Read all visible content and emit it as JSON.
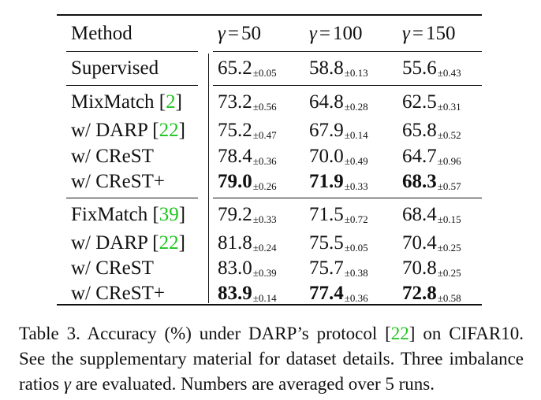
{
  "table": {
    "header": {
      "method": "Method",
      "cols": [
        {
          "symbol": "γ",
          "eq": "=",
          "value": "50"
        },
        {
          "symbol": "γ",
          "eq": "=",
          "value": "100"
        },
        {
          "symbol": "γ",
          "eq": "=",
          "value": "150"
        }
      ]
    },
    "rows": [
      {
        "method": "Supervised",
        "ref": "",
        "values": [
          {
            "mean": "65.2",
            "sd": "±0.05",
            "bold": false
          },
          {
            "mean": "58.8",
            "sd": "±0.13",
            "bold": false
          },
          {
            "mean": "55.6",
            "sd": "±0.43",
            "bold": false
          }
        ]
      },
      {
        "method": "MixMatch ",
        "ref": "2",
        "values": [
          {
            "mean": "73.2",
            "sd": "±0.56",
            "bold": false
          },
          {
            "mean": "64.8",
            "sd": "±0.28",
            "bold": false
          },
          {
            "mean": "62.5",
            "sd": "±0.31",
            "bold": false
          }
        ]
      },
      {
        "method": "w/ DARP ",
        "ref": "22",
        "values": [
          {
            "mean": "75.2",
            "sd": "±0.47",
            "bold": false
          },
          {
            "mean": "67.9",
            "sd": "±0.14",
            "bold": false
          },
          {
            "mean": "65.8",
            "sd": "±0.52",
            "bold": false
          }
        ]
      },
      {
        "method": "w/ CReST",
        "ref": "",
        "values": [
          {
            "mean": "78.4",
            "sd": "±0.36",
            "bold": false
          },
          {
            "mean": "70.0",
            "sd": "±0.49",
            "bold": false
          },
          {
            "mean": "64.7",
            "sd": "±0.96",
            "bold": false
          }
        ]
      },
      {
        "method": "w/ CReST+",
        "ref": "",
        "values": [
          {
            "mean": "79.0",
            "sd": "±0.26",
            "bold": true
          },
          {
            "mean": "71.9",
            "sd": "±0.33",
            "bold": true
          },
          {
            "mean": "68.3",
            "sd": "±0.57",
            "bold": true
          }
        ]
      },
      {
        "method": "FixMatch ",
        "ref": "39",
        "values": [
          {
            "mean": "79.2",
            "sd": "±0.33",
            "bold": false
          },
          {
            "mean": "71.5",
            "sd": "±0.72",
            "bold": false
          },
          {
            "mean": "68.4",
            "sd": "±0.15",
            "bold": false
          }
        ]
      },
      {
        "method": "w/ DARP ",
        "ref": "22",
        "values": [
          {
            "mean": "81.8",
            "sd": "±0.24",
            "bold": false
          },
          {
            "mean": "75.5",
            "sd": "±0.05",
            "bold": false
          },
          {
            "mean": "70.4",
            "sd": "±0.25",
            "bold": false
          }
        ]
      },
      {
        "method": "w/ CReST",
        "ref": "",
        "values": [
          {
            "mean": "83.0",
            "sd": "±0.39",
            "bold": false
          },
          {
            "mean": "75.7",
            "sd": "±0.38",
            "bold": false
          },
          {
            "mean": "70.8",
            "sd": "±0.25",
            "bold": false
          }
        ]
      },
      {
        "method": "w/ CReST+",
        "ref": "",
        "values": [
          {
            "mean": "83.9",
            "sd": "±0.14",
            "bold": true
          },
          {
            "mean": "77.4",
            "sd": "±0.36",
            "bold": true
          },
          {
            "mean": "72.8",
            "sd": "±0.58",
            "bold": true
          }
        ]
      }
    ]
  },
  "caption": {
    "before_ref": "Table 3. Accuracy (%) under DARP’s protocol ",
    "ref": "22",
    "after_ref": " on CIFAR10. See the supplementary material for dataset details. Three imbalance ratios ",
    "gamma": "γ",
    "end": " are evaluated. Numbers are averaged over 5 runs."
  },
  "colors": {
    "ref": "#1fc41f",
    "text": "#111111"
  }
}
